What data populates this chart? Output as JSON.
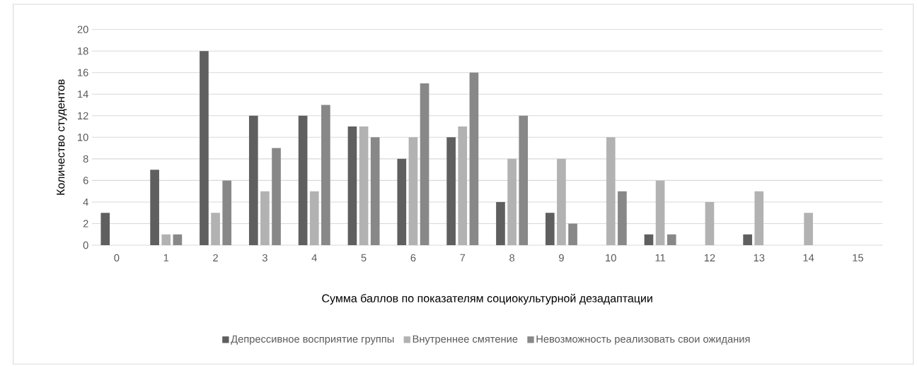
{
  "chart_data": {
    "type": "bar",
    "xlabel": "Сумма баллов по показателям социокультурной дезадаптации",
    "ylabel": "Количество студентов",
    "categories": [
      "0",
      "1",
      "2",
      "3",
      "4",
      "5",
      "6",
      "7",
      "8",
      "9",
      "10",
      "11",
      "12",
      "13",
      "14",
      "15"
    ],
    "series": [
      {
        "name": "Депрессивное восприятие группы",
        "color": "#5f5f5f",
        "values": [
          3,
          7,
          18,
          12,
          12,
          11,
          8,
          10,
          4,
          3,
          0,
          1,
          0,
          1,
          0,
          0
        ]
      },
      {
        "name": "Внутреннее смятение",
        "color": "#b2b2b2",
        "values": [
          0,
          1,
          3,
          5,
          5,
          11,
          10,
          11,
          8,
          8,
          10,
          6,
          4,
          5,
          3,
          0
        ]
      },
      {
        "name": "Невозможность реализовать свои ожидания",
        "color": "#888888",
        "values": [
          0,
          1,
          6,
          9,
          13,
          10,
          15,
          16,
          12,
          2,
          5,
          1,
          0,
          0,
          0,
          0
        ]
      }
    ],
    "ylim": [
      0,
      20
    ],
    "yticks": [
      0,
      2,
      4,
      6,
      8,
      10,
      12,
      14,
      16,
      18,
      20
    ],
    "grid": "y",
    "legend": "bottom"
  }
}
